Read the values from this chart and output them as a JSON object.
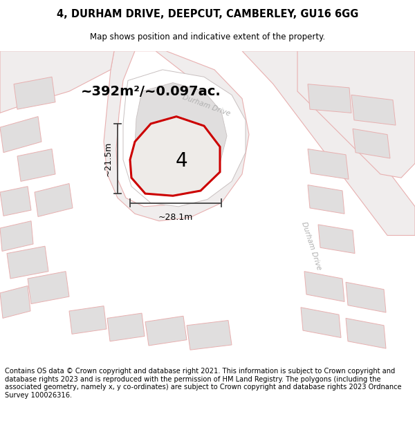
{
  "title_line1": "4, DURHAM DRIVE, DEEPCUT, CAMBERLEY, GU16 6GG",
  "title_line2": "Map shows position and indicative extent of the property.",
  "area_text": "~392m²/~0.097ac.",
  "label_number": "4",
  "dim_width": "~28.1m",
  "dim_height": "~21.5m",
  "road_label1": "Durham Drive",
  "road_label2": "Durham Drive",
  "footer_text": "Contains OS data © Crown copyright and database right 2021. This information is subject to Crown copyright and database rights 2023 and is reproduced with the permission of HM Land Registry. The polygons (including the associated geometry, namely x, y co-ordinates) are subject to Crown copyright and database rights 2023 Ordnance Survey 100026316.",
  "map_bg": "#ffffff",
  "plot_fill": "#eeebe8",
  "plot_stroke": "#cc0000",
  "road_fill": "#f0eded",
  "road_stroke": "#e8b0b0",
  "building_fill": "#e0dede",
  "building_stroke": "#e8b0b0",
  "lot_fill": "#e8e4e2",
  "lot_stroke": "#c8c8c8",
  "dim_color": "#444444",
  "text_color": "#000000",
  "road_text_color": "#b0b0b0"
}
